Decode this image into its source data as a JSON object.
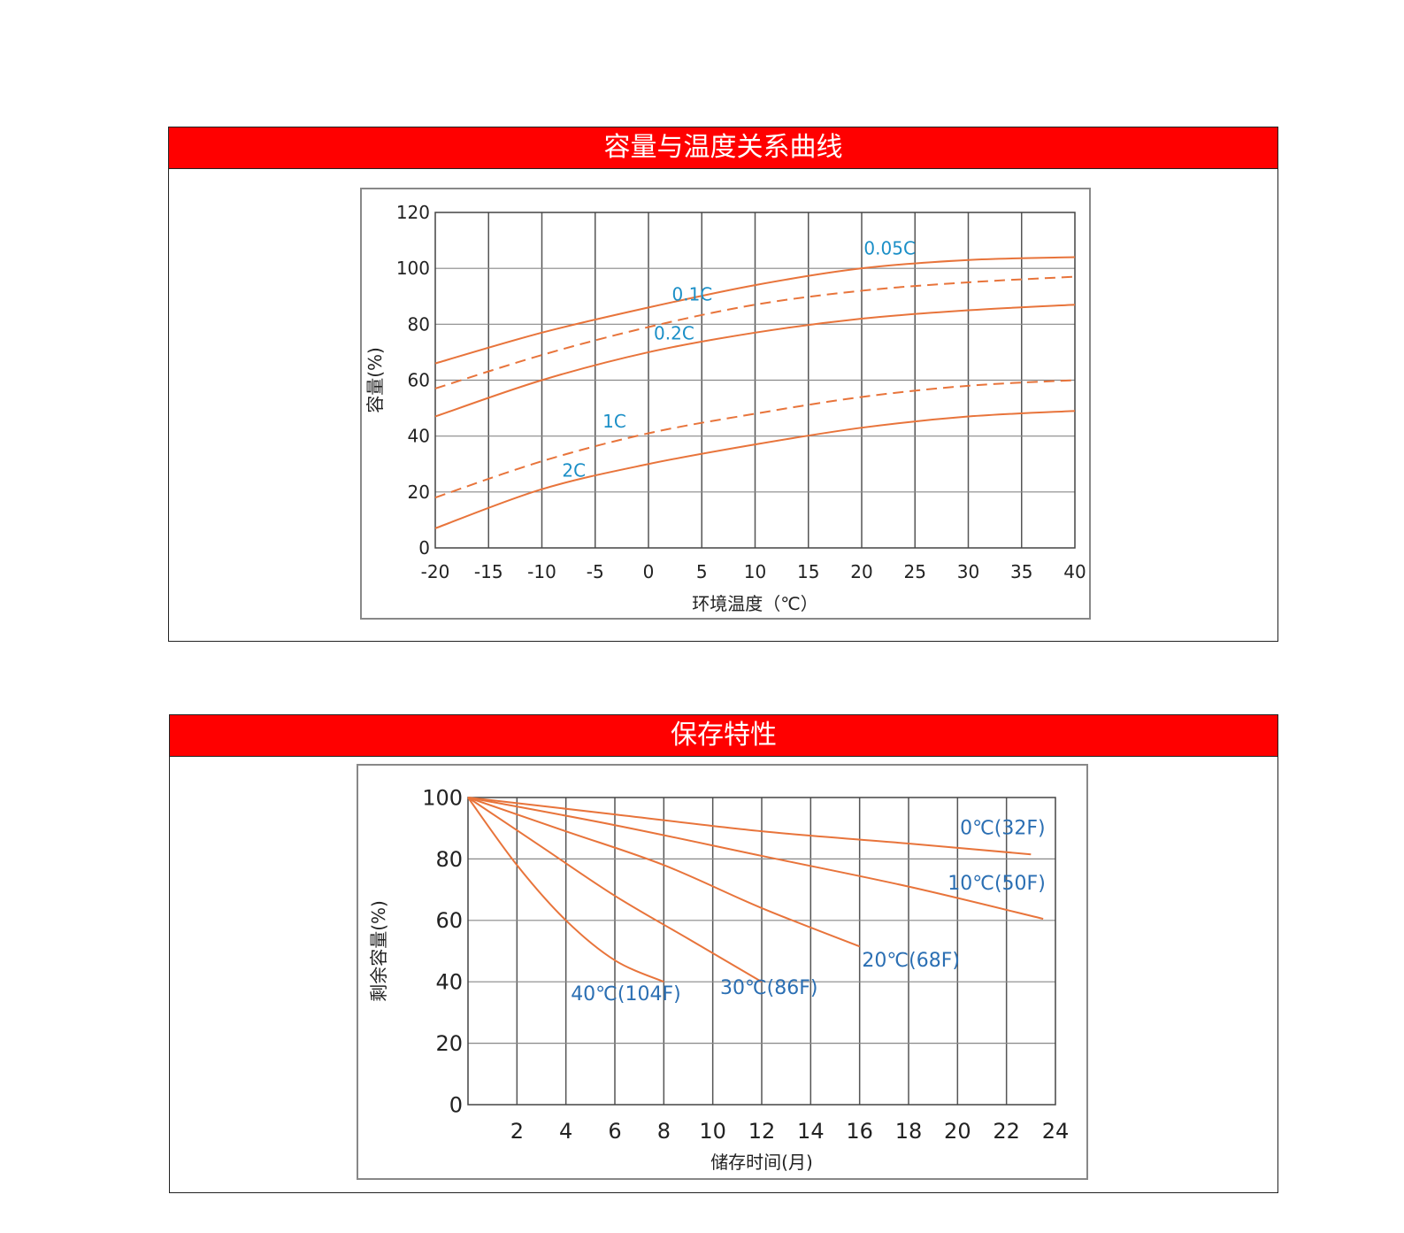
{
  "chart_data": [
    {
      "type": "line",
      "title": "容量与温度关系曲线",
      "xlabel": "环境温度（℃）",
      "ylabel": "容量(%)",
      "xlim": [
        -20,
        40
      ],
      "ylim": [
        0,
        120
      ],
      "x_ticks": [
        "-20",
        "-15",
        "-10",
        "-5",
        "0",
        "5",
        "10",
        "15",
        "20",
        "25",
        "30",
        "35",
        "40"
      ],
      "y_ticks": [
        "0",
        "20",
        "40",
        "60",
        "80",
        "100",
        "120"
      ],
      "grid": true,
      "series": [
        {
          "name": "0.05C",
          "style": "solid",
          "x": [
            -20,
            -10,
            0,
            10,
            20,
            30,
            40
          ],
          "y": [
            66,
            77,
            86,
            94,
            100,
            103,
            104
          ]
        },
        {
          "name": "0.1C",
          "style": "dashed",
          "x": [
            -20,
            -10,
            0,
            10,
            20,
            30,
            40
          ],
          "y": [
            57,
            69,
            79,
            87,
            92,
            95,
            97
          ]
        },
        {
          "name": "0.2C",
          "style": "solid",
          "x": [
            -20,
            -10,
            0,
            10,
            20,
            30,
            40
          ],
          "y": [
            47,
            60,
            70,
            77,
            82,
            85,
            87
          ]
        },
        {
          "name": "1C",
          "style": "dashed",
          "x": [
            -20,
            -10,
            0,
            10,
            20,
            30,
            40
          ],
          "y": [
            18,
            31,
            41,
            48,
            54,
            58,
            60
          ]
        },
        {
          "name": "2C",
          "style": "solid",
          "x": [
            -20,
            -10,
            0,
            10,
            20,
            30,
            40
          ],
          "y": [
            7,
            21,
            30,
            37,
            43,
            47,
            49
          ]
        }
      ]
    },
    {
      "type": "line",
      "title": "保存特性",
      "xlabel": "储存时间(月)",
      "ylabel": "剩余容量(%)",
      "xlim": [
        0,
        24
      ],
      "ylim": [
        0,
        100
      ],
      "x_ticks": [
        "2",
        "4",
        "6",
        "8",
        "10",
        "12",
        "14",
        "16",
        "18",
        "20",
        "22",
        "24"
      ],
      "y_ticks": [
        "0",
        "20",
        "40",
        "60",
        "80",
        "100"
      ],
      "grid": true,
      "series": [
        {
          "name": "0℃(32F)",
          "x": [
            0,
            6,
            12,
            18,
            23
          ],
          "y": [
            100,
            94.5,
            89,
            85,
            81.5
          ]
        },
        {
          "name": "10℃(50F)",
          "x": [
            0,
            6,
            12,
            18,
            23.5
          ],
          "y": [
            100,
            91,
            81,
            71,
            60.5
          ]
        },
        {
          "name": "20℃(68F)",
          "x": [
            0,
            4,
            8,
            12,
            16
          ],
          "y": [
            100,
            89,
            78,
            64,
            51.5
          ]
        },
        {
          "name": "30℃(86F)",
          "x": [
            0,
            3,
            6,
            9,
            12
          ],
          "y": [
            100,
            84,
            68,
            54,
            40
          ]
        },
        {
          "name": "40℃(104F)",
          "x": [
            0,
            2,
            4,
            6,
            8
          ],
          "y": [
            100,
            78,
            60,
            47,
            40
          ]
        }
      ]
    }
  ]
}
